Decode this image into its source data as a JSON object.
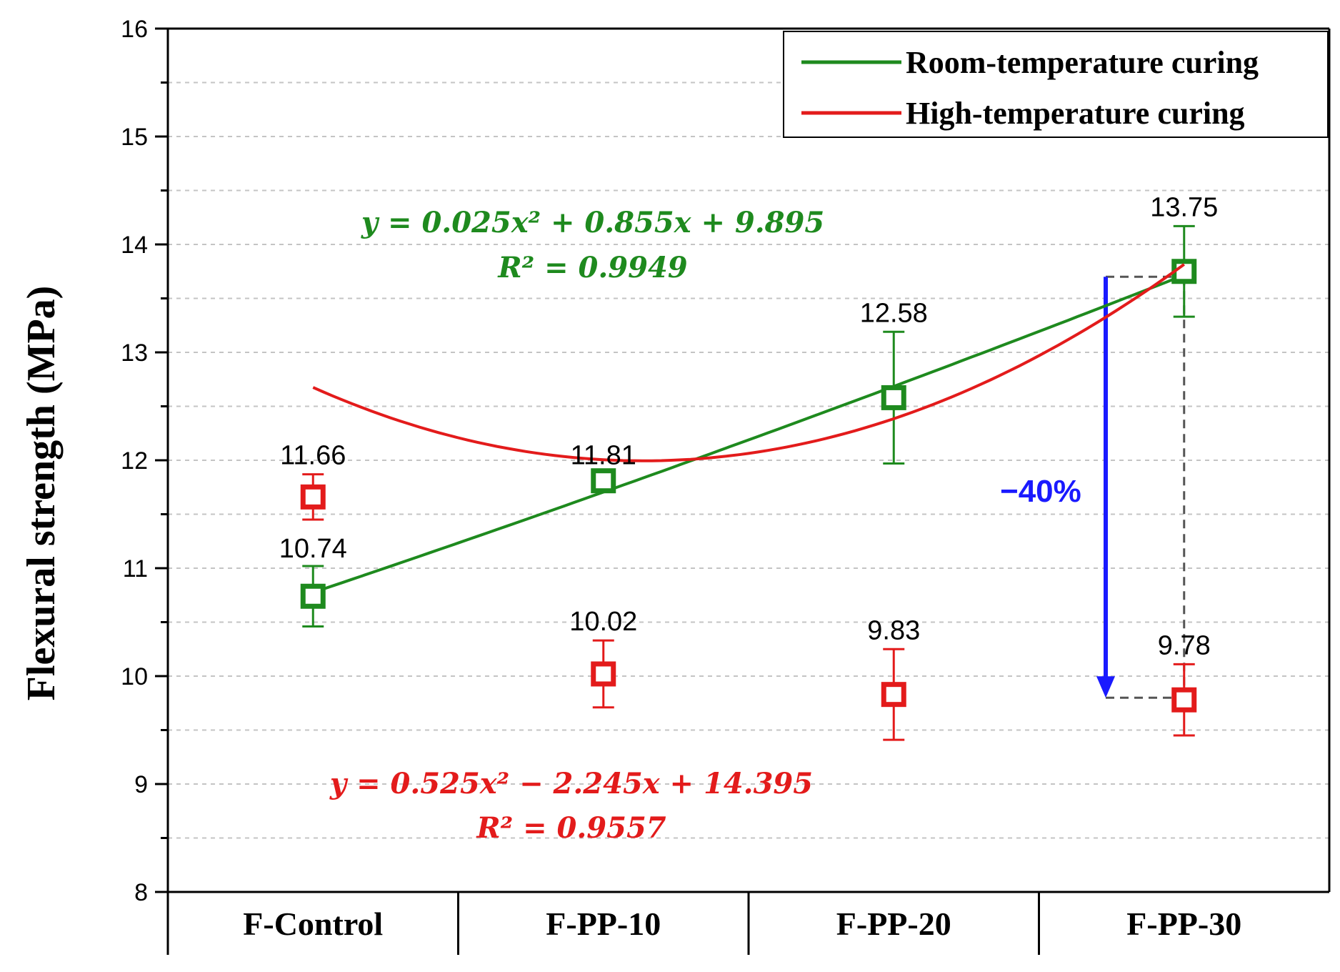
{
  "chart_data": {
    "type": "line",
    "ylabel": "Flexural strength (MPa)",
    "xlabel": "",
    "ylim": [
      8,
      16
    ],
    "yticks": [
      "8",
      "9",
      "10",
      "11",
      "12",
      "13",
      "14",
      "15",
      "16"
    ],
    "grid": "horizontal dashed at minor ticks",
    "legend_position": "top-right",
    "categories": [
      "F-Control",
      "F-PP-10",
      "F-PP-20",
      "F-PP-30"
    ],
    "series": [
      {
        "name": "Room-temperature curing",
        "color": "#1e8a1e",
        "values": [
          10.74,
          11.81,
          12.58,
          13.75
        ],
        "error": [
          0.28,
          0.06,
          0.61,
          0.42
        ],
        "point_labels": [
          "10.74",
          "11.81",
          "12.58",
          "13.75"
        ],
        "fit": {
          "a": 0.025,
          "b": 0.855,
          "c": 9.895
        },
        "equation": "y = 0.025x² + 0.855x + 9.895",
        "r2": "R² = 0.9949"
      },
      {
        "name": "High-temperature curing",
        "color": "#e31b1b",
        "values": [
          11.66,
          10.02,
          9.83,
          9.78
        ],
        "error": [
          0.21,
          0.31,
          0.42,
          0.33
        ],
        "point_labels": [
          "11.66",
          "10.02",
          "9.83",
          "9.78"
        ],
        "fit": {
          "a": 0.525,
          "b": -2.245,
          "c": 14.395
        },
        "equation": "y = 0.525x² − 2.245x + 14.395",
        "r2": "R² = 0.9557"
      }
    ],
    "annotation": {
      "text": "−40%",
      "color": "#1a1aff",
      "from": 13.7,
      "to": 9.8
    }
  }
}
